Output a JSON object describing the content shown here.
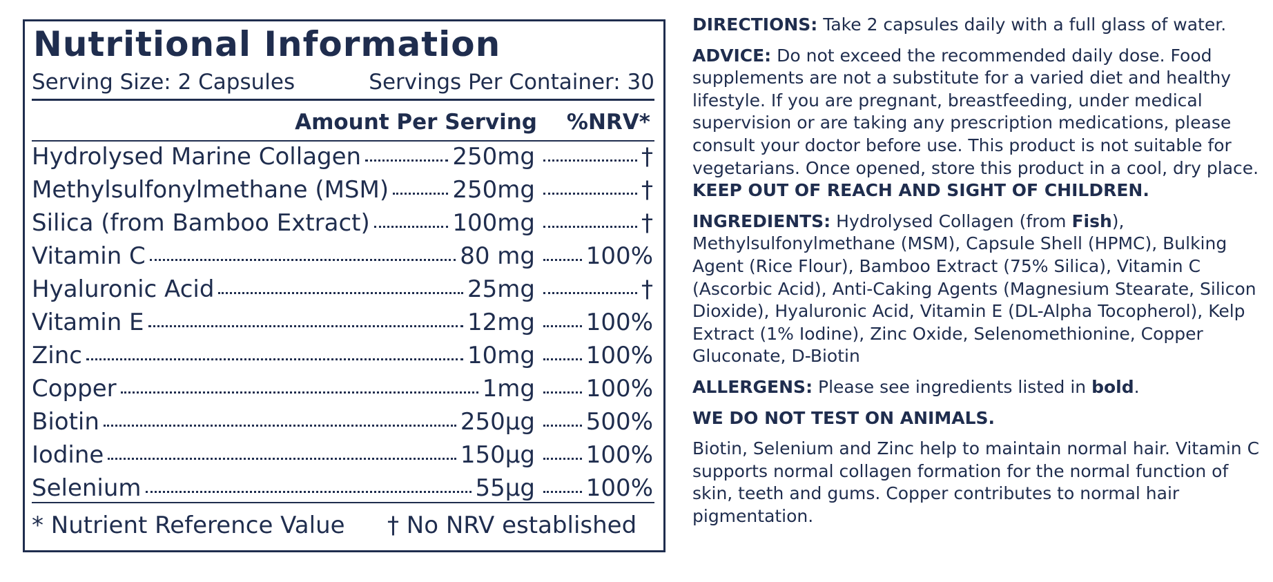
{
  "panel": {
    "title": "Nutritional Information",
    "serving_size": "Serving Size: 2 Capsules",
    "servings_per_container": "Servings Per Container: 30",
    "header_amount": "Amount Per Serving",
    "header_nrv": "%NRV*",
    "rows": [
      {
        "name": "Hydrolysed Marine Collagen",
        "amount": "250mg",
        "nrv": "†"
      },
      {
        "name": "Methylsulfonylmethane (MSM)",
        "amount": "250mg",
        "nrv": "†"
      },
      {
        "name": "Silica (from Bamboo Extract)",
        "amount": "100mg",
        "nrv": "†"
      },
      {
        "name": "Vitamin C",
        "amount": "80 mg",
        "nrv": "100%"
      },
      {
        "name": "Hyaluronic Acid",
        "amount": "25mg",
        "nrv": "†"
      },
      {
        "name": "Vitamin E",
        "amount": "12mg",
        "nrv": "100%"
      },
      {
        "name": "Zinc",
        "amount": "10mg",
        "nrv": "100%"
      },
      {
        "name": "Copper",
        "amount": "1mg",
        "nrv": "100%"
      },
      {
        "name": "Biotin",
        "amount": "250µg",
        "nrv": "500%"
      },
      {
        "name": "Iodine",
        "amount": "150µg",
        "nrv": "100%"
      },
      {
        "name": "Selenium",
        "amount": "55µg",
        "nrv": "100%"
      }
    ],
    "footnote_nrv": "* Nutrient Reference Value",
    "footnote_dagger": "† No NRV established"
  },
  "sections": [
    {
      "parts": [
        {
          "text": "DIRECTIONS:",
          "bold": true
        },
        {
          "text": " Take 2 capsules daily with a full glass of water.",
          "bold": false
        }
      ]
    },
    {
      "parts": [
        {
          "text": "ADVICE:",
          "bold": true
        },
        {
          "text": " Do not exceed the recommended daily dose. Food supplements are not a substitute for a varied diet and healthy lifestyle. If you are pregnant, breastfeeding, under medical supervision or are taking any prescription medications, please consult your doctor before use. This product is not suitable for vegetarians. Once opened, store this product in a cool, dry place. ",
          "bold": false
        },
        {
          "text": "KEEP OUT OF REACH AND SIGHT OF CHILDREN.",
          "bold": true
        }
      ]
    },
    {
      "parts": [
        {
          "text": "INGREDIENTS:",
          "bold": true
        },
        {
          "text": " Hydrolysed Collagen (from ",
          "bold": false
        },
        {
          "text": "Fish",
          "bold": true
        },
        {
          "text": "), Methylsulfonylmethane (MSM), Capsule Shell (HPMC), Bulking Agent (Rice Flour), Bamboo Extract (75% Silica), Vitamin C (Ascorbic Acid), Anti-Caking Agents (Magnesium Stearate, Silicon Dioxide), Hyaluronic Acid, Vitamin E (DL-Alpha Tocopherol), Kelp Extract (1% Iodine), Zinc Oxide, Selenomethionine, Copper Gluconate, D-Biotin",
          "bold": false
        }
      ]
    },
    {
      "parts": [
        {
          "text": "ALLERGENS:",
          "bold": true
        },
        {
          "text": " Please see ingredients listed in ",
          "bold": false
        },
        {
          "text": "bold",
          "bold": true
        },
        {
          "text": ".",
          "bold": false
        }
      ]
    },
    {
      "parts": [
        {
          "text": "WE DO NOT TEST ON ANIMALS.",
          "bold": true
        }
      ]
    },
    {
      "parts": [
        {
          "text": "Biotin, Selenium and Zinc help to maintain normal hair. Vitamin C supports normal collagen formation for the normal function of skin, teeth and gums. Copper contributes to normal hair pigmentation.",
          "bold": false
        }
      ]
    }
  ]
}
